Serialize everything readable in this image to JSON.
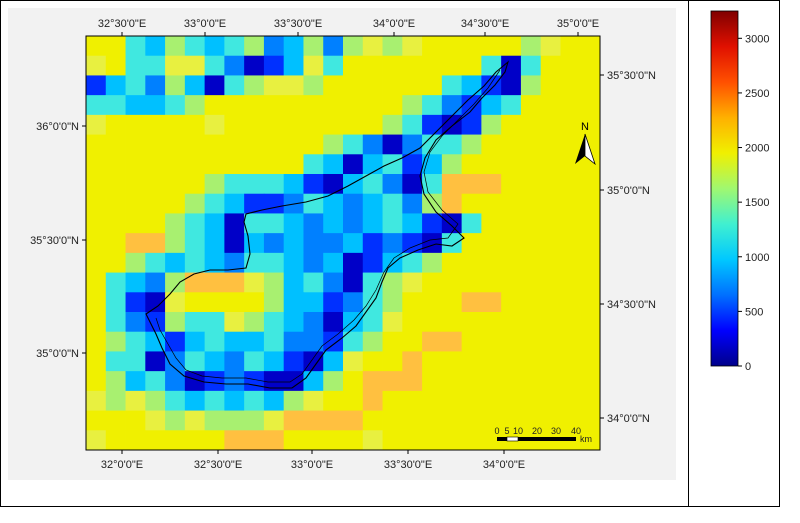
{
  "map": {
    "lon_ticks_top": [
      "32°30'0\"E",
      "33°0'0\"E",
      "33°30'0\"E",
      "34°0'0\"E",
      "34°30'0\"E",
      "35°0'0\"E"
    ],
    "lon_ticks_bottom": [
      "32°0'0\"E",
      "32°30'0\"E",
      "33°0'0\"E",
      "33°30'0\"E",
      "34°0'0\"E"
    ],
    "lat_ticks_left": [
      "36°0'0\"N",
      "35°30'0\"N",
      "35°0'0\"N"
    ],
    "lat_ticks_right": [
      "35°30'0\"N",
      "35°0'0\"N",
      "34°30'0\"N",
      "34°0'0\"N"
    ],
    "north_label": "N",
    "scalebar": {
      "labels": [
        "0",
        "5",
        "10",
        "20",
        "30",
        "40"
      ],
      "unit": "km"
    }
  },
  "legend": {
    "ticks": [
      "3000",
      "2500",
      "2000",
      "1500",
      "1000",
      "500",
      "0"
    ],
    "max": 3250,
    "colors": [
      "#00008a",
      "#0000ff",
      "#0070ff",
      "#00c8ff",
      "#40f0d0",
      "#a0f870",
      "#f0f000",
      "#ffb000",
      "#ff5000",
      "#e01000",
      "#800000"
    ]
  }
}
